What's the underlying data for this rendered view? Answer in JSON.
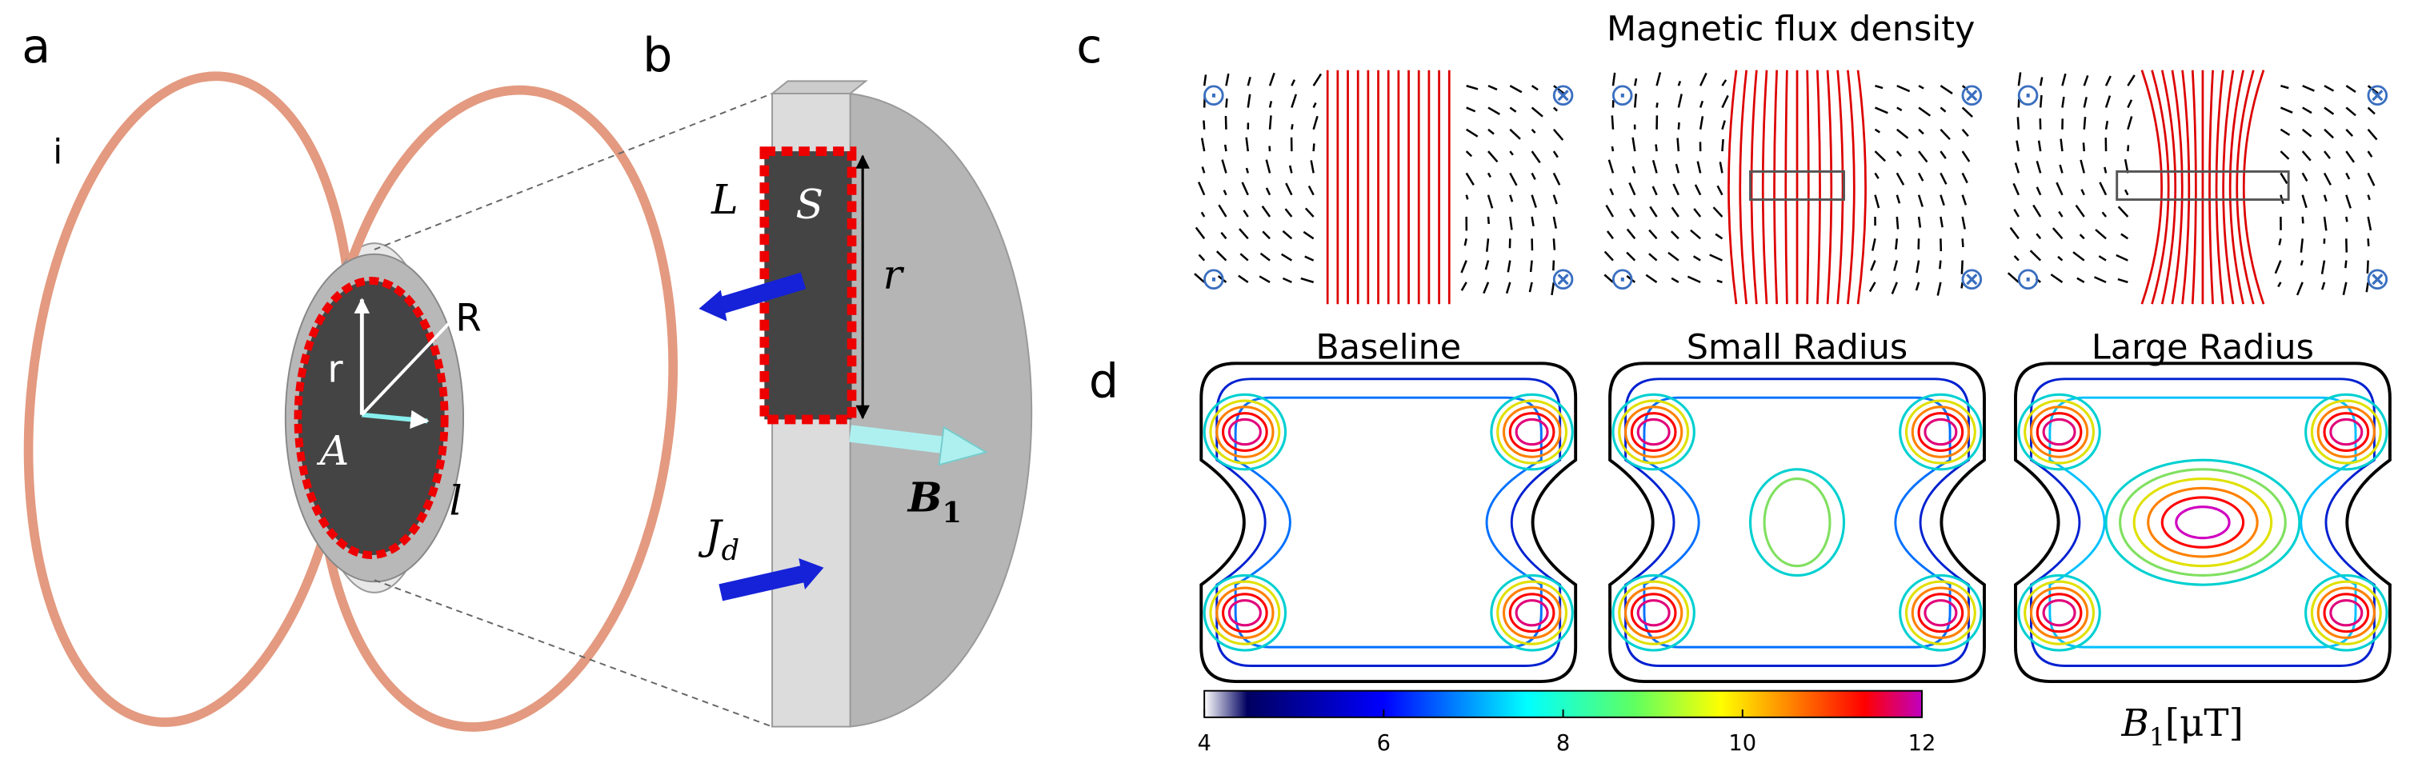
{
  "panels": {
    "a": {
      "label": "a",
      "sublabel": "i",
      "R": "R",
      "r": "r",
      "A": "A",
      "l": "l"
    },
    "b": {
      "label": "b",
      "L": "L",
      "S": "S",
      "r": "r",
      "J": {
        "symbol": "J",
        "subscript": "d"
      },
      "B": {
        "symbol": "B",
        "subscript": "1"
      }
    },
    "c": {
      "label": "c",
      "title": "Magnetic flux density"
    },
    "d": {
      "label": "d",
      "cases": [
        "Baseline",
        "Small Radius",
        "Large Radius"
      ],
      "colorbar": {
        "lim": [
          4,
          12
        ],
        "ticks": [
          4,
          6,
          8,
          10,
          12
        ],
        "quantity": {
          "symbol": "B",
          "subscript": "1",
          "unit": "[μT]"
        }
      }
    }
  }
}
